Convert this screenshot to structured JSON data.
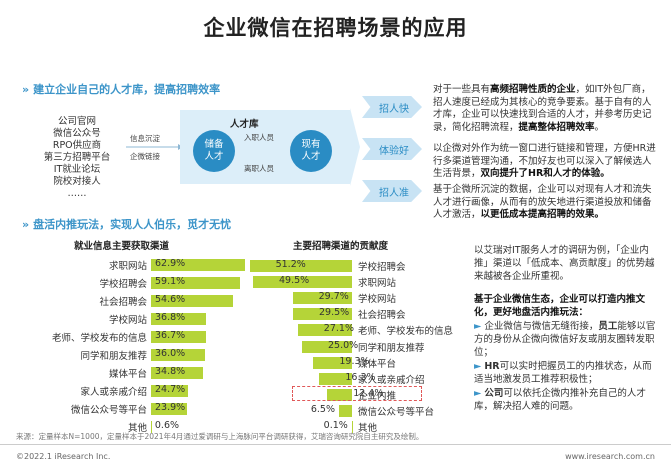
{
  "title": "企业微信在招聘场景的应用",
  "section1": {
    "heading": "建立企业自己的人才库，提高招聘效率"
  },
  "sources": [
    "公司官网",
    "微信公众号",
    "RPO供应商",
    "第三方招聘平台",
    "IT就业论坛",
    "院校对接人",
    "……"
  ],
  "flow": {
    "label_top": "信息沉淀",
    "label_bottom": "企微链接",
    "pool_title": "人才库",
    "reserve": "储备\n人才",
    "current": "现有\n人才",
    "entry": "入职人员",
    "exit": "离职人员"
  },
  "benefits": [
    "招人快",
    "体验好",
    "招人准"
  ],
  "paragraphs": [
    {
      "parts": [
        {
          "t": "对于一些具有",
          "b": false
        },
        {
          "t": "高频招聘性质的企业",
          "b": true
        },
        {
          "t": "，如IT外包厂商，招人速度已经成为其核心的竞争要素。基于自有的人才库，企业可以快速找到合适的人才，并参考历史记录，简化招聘流程，",
          "b": false
        },
        {
          "t": "提高整体招聘效率",
          "b": true
        },
        {
          "t": "。",
          "b": false
        }
      ]
    },
    {
      "parts": [
        {
          "t": "以企微对外作为统一窗口进行链接和管理，方便HR进行多渠道管理沟通，不加好友也可以深入了解候选人生活背景，",
          "b": false
        },
        {
          "t": "双向提升了HR和人才的体验。",
          "b": true
        }
      ]
    },
    {
      "parts": [
        {
          "t": "基于企微所沉淀的数据，企业可以对现有人才和流失人才进行画像，从而有的放矢地进行渠道投放和储备人才激活，",
          "b": false
        },
        {
          "t": "以更低成本提高招聘的效果。",
          "b": true
        }
      ]
    }
  ],
  "section2": {
    "heading": "盘活内推玩法，实现人人伯乐，觅才无忧"
  },
  "chart_data": [
    {
      "type": "bar",
      "title": "就业信息主要获取渠道",
      "categories": [
        "求职网站",
        "学校招聘会",
        "社会招聘会",
        "学校网站",
        "老师、学校发布的信息",
        "同学和朋友推荐",
        "媒体平台",
        "家人或亲戚介绍",
        "微信公众号等平台",
        "其他"
      ],
      "values": [
        62.9,
        59.1,
        54.6,
        36.8,
        36.7,
        36.0,
        34.8,
        24.7,
        23.9,
        0.6
      ],
      "value_labels": [
        "62.9%",
        "59.1%",
        "54.6%",
        "36.8%",
        "36.7%",
        "36.0%",
        "34.8%",
        "24.7%",
        "23.9%",
        "0.6%"
      ],
      "xlim": [
        0,
        100
      ]
    },
    {
      "type": "bar",
      "title": "主要招聘渠道的贡献度",
      "categories": [
        "学校招聘会",
        "求职网站",
        "学校网站",
        "社会招聘会",
        "老师、学校发布的信息",
        "同学和朋友推荐",
        "媒体平台",
        "家人或亲戚介绍",
        "企业内推",
        "微信公众号等平台",
        "其他"
      ],
      "values": [
        51.2,
        49.5,
        29.7,
        29.5,
        27.1,
        25.0,
        19.3,
        16.3,
        12.4,
        6.5,
        0.1
      ],
      "value_labels": [
        "51.2%",
        "49.5%",
        "29.7%",
        "29.5%",
        "27.1%",
        "25.0%",
        "19.3%",
        "16.3%",
        "12.4%",
        "6.5%",
        "0.1%"
      ],
      "highlight": "企业内推",
      "xlim": [
        0,
        100
      ]
    }
  ],
  "right_intro": "以艾瑞对IT服务人才的调研为例，「企业内推」渠道以「低成本、高贡献度」的优势越来越被各企业所重视。",
  "right_heading": "基于企业微信生态，企业可以打造内推文化，更好地盘活内推玩法：",
  "bullets": [
    {
      "parts": [
        {
          "t": "企业微信与微信无缝衔接，",
          "b": false
        },
        {
          "t": "员工",
          "b": true
        },
        {
          "t": "能够以官方的身份从企微向微信好友或朋友圈转发职位；",
          "b": false
        }
      ]
    },
    {
      "parts": [
        {
          "t": "HR",
          "b": true
        },
        {
          "t": "可以实时把握员工的内推状态，从而适当地激发员工推荐积极性；",
          "b": false
        }
      ]
    },
    {
      "parts": [
        {
          "t": "公司",
          "b": true
        },
        {
          "t": "可以依托企微内推补充自己的人才库，解决招人难的问题。",
          "b": false
        }
      ]
    }
  ],
  "bullet_mark": "►",
  "footnote": "来源：定量样本N=1000，定量样本于2021年4月通过爱调研与上海脉问平台调研获得，艾瑞咨询研究院自主研究及绘制。",
  "footer_left": "©2022.1 iResearch Inc.",
  "footer_right": "www.iresearch.com.cn",
  "colors": {
    "accent": "#3d95c9",
    "bar": "#b5d438",
    "highlight": "#e05858"
  }
}
